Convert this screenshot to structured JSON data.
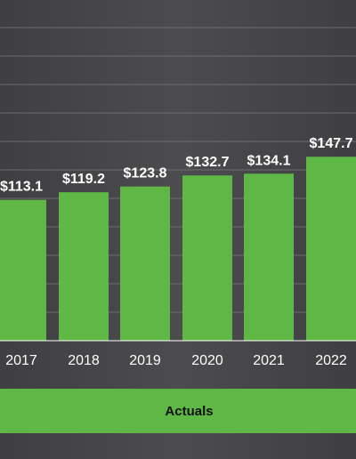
{
  "chart_data": {
    "type": "bar",
    "categories": [
      "2017",
      "2018",
      "2019",
      "2020",
      "2021",
      "2022"
    ],
    "values": [
      113.1,
      119.2,
      123.8,
      132.7,
      134.1,
      147.7
    ],
    "labels": [
      "$113.1",
      "$119.2",
      "$123.8",
      "$132.7",
      "$134.1",
      "$147.7"
    ],
    "title": "",
    "xlabel": "",
    "ylabel": "",
    "grid": true,
    "bar_color": "#5fb846",
    "gridline_color": "#6e6e70",
    "background_color": "#48484a"
  },
  "banner": {
    "label": "Actuals",
    "color": "#5fb846"
  }
}
